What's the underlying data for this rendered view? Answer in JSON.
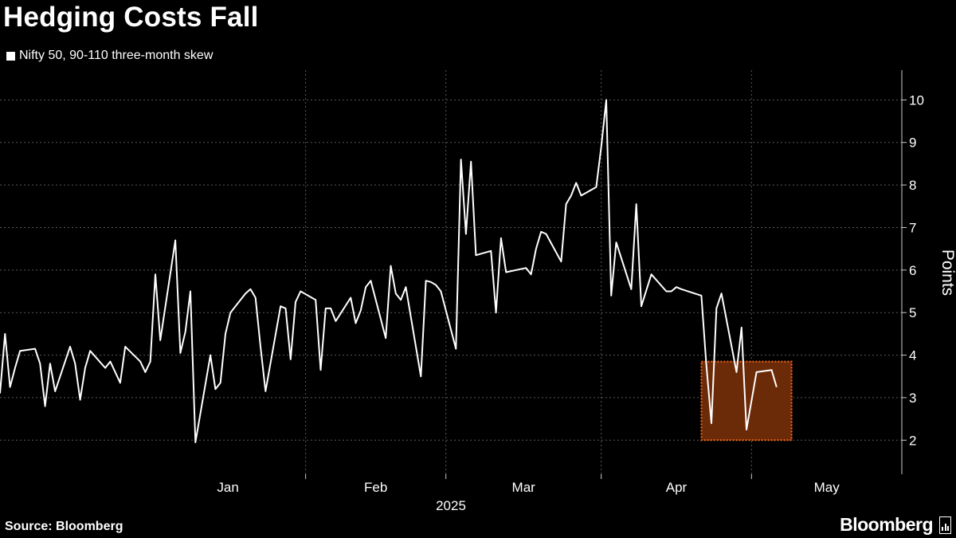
{
  "title": "Hedging Costs Fall",
  "legend": {
    "label": "Nifty 50, 90-110 three-month skew",
    "color": "#ffffff"
  },
  "source": "Source: Bloomberg",
  "brand": "Bloomberg",
  "colors": {
    "background": "#000000",
    "line": "#ffffff",
    "grid": "#5a5a5a",
    "highlight_fill": "#6b2a08",
    "highlight_border": "#ff6a1a"
  },
  "chart_data": {
    "type": "line",
    "title": "Hedging Costs Fall",
    "ylabel": "Points",
    "xlabel": "2025",
    "ylim": [
      1.2,
      10.7
    ],
    "y_ticks": [
      2,
      3,
      4,
      5,
      6,
      7,
      8,
      9,
      10
    ],
    "x_ticks": [
      "Jan",
      "Feb",
      "Mar",
      "Apr",
      "May"
    ],
    "x_tick_dates": [
      "2025-01-01",
      "2025-02-01",
      "2025-03-01",
      "2025-04-01",
      "2025-05-01"
    ],
    "x_range": [
      "2024-12-02",
      "2025-05-31"
    ],
    "year_label": "2025",
    "grid": true,
    "y_axis_position": "right",
    "series": [
      {
        "name": "Nifty 50, 90-110 three-month skew",
        "color": "#ffffff",
        "points": [
          [
            "2024-12-02",
            3.1
          ],
          [
            "2024-12-03",
            4.5
          ],
          [
            "2024-12-04",
            3.25
          ],
          [
            "2024-12-05",
            3.7
          ],
          [
            "2024-12-06",
            4.1
          ],
          [
            "2024-12-09",
            4.15
          ],
          [
            "2024-12-10",
            3.8
          ],
          [
            "2024-12-11",
            2.8
          ],
          [
            "2024-12-12",
            3.8
          ],
          [
            "2024-12-13",
            3.15
          ],
          [
            "2024-12-16",
            4.2
          ],
          [
            "2024-12-17",
            3.8
          ],
          [
            "2024-12-18",
            2.95
          ],
          [
            "2024-12-19",
            3.7
          ],
          [
            "2024-12-20",
            4.1
          ],
          [
            "2024-12-23",
            3.7
          ],
          [
            "2024-12-24",
            3.85
          ],
          [
            "2024-12-26",
            3.35
          ],
          [
            "2024-12-27",
            4.2
          ],
          [
            "2024-12-30",
            3.85
          ],
          [
            "2024-12-31",
            3.6
          ],
          [
            "2025-01-01",
            3.85
          ],
          [
            "2025-01-02",
            5.9
          ],
          [
            "2025-01-03",
            4.35
          ],
          [
            "2025-01-06",
            6.7
          ],
          [
            "2025-01-07",
            4.05
          ],
          [
            "2025-01-08",
            4.55
          ],
          [
            "2025-01-09",
            5.5
          ],
          [
            "2025-01-10",
            1.95
          ],
          [
            "2025-01-13",
            4.0
          ],
          [
            "2025-01-14",
            3.2
          ],
          [
            "2025-01-15",
            3.35
          ],
          [
            "2025-01-16",
            4.5
          ],
          [
            "2025-01-17",
            5.0
          ],
          [
            "2025-01-20",
            5.45
          ],
          [
            "2025-01-21",
            5.55
          ],
          [
            "2025-01-22",
            5.35
          ],
          [
            "2025-01-23",
            4.2
          ],
          [
            "2025-01-24",
            3.15
          ],
          [
            "2025-01-27",
            5.15
          ],
          [
            "2025-01-28",
            5.1
          ],
          [
            "2025-01-29",
            3.9
          ],
          [
            "2025-01-30",
            5.25
          ],
          [
            "2025-01-31",
            5.5
          ],
          [
            "2025-02-03",
            5.3
          ],
          [
            "2025-02-04",
            3.65
          ],
          [
            "2025-02-05",
            5.1
          ],
          [
            "2025-02-06",
            5.1
          ],
          [
            "2025-02-07",
            4.8
          ],
          [
            "2025-02-10",
            5.35
          ],
          [
            "2025-02-11",
            4.75
          ],
          [
            "2025-02-12",
            5.05
          ],
          [
            "2025-02-13",
            5.6
          ],
          [
            "2025-02-14",
            5.75
          ],
          [
            "2025-02-17",
            4.4
          ],
          [
            "2025-02-18",
            6.1
          ],
          [
            "2025-02-19",
            5.45
          ],
          [
            "2025-02-20",
            5.3
          ],
          [
            "2025-02-21",
            5.6
          ],
          [
            "2025-02-24",
            3.5
          ],
          [
            "2025-02-25",
            5.75
          ],
          [
            "2025-02-26",
            5.72
          ],
          [
            "2025-02-27",
            5.65
          ],
          [
            "2025-02-28",
            5.5
          ],
          [
            "2025-03-03",
            4.15
          ],
          [
            "2025-03-04",
            8.6
          ],
          [
            "2025-03-05",
            6.85
          ],
          [
            "2025-03-06",
            8.55
          ],
          [
            "2025-03-07",
            6.35
          ],
          [
            "2025-03-10",
            6.45
          ],
          [
            "2025-03-11",
            5.0
          ],
          [
            "2025-03-12",
            6.75
          ],
          [
            "2025-03-13",
            5.95
          ],
          [
            "2025-03-17",
            6.05
          ],
          [
            "2025-03-18",
            5.9
          ],
          [
            "2025-03-19",
            6.5
          ],
          [
            "2025-03-20",
            6.9
          ],
          [
            "2025-03-21",
            6.85
          ],
          [
            "2025-03-24",
            6.2
          ],
          [
            "2025-03-25",
            7.55
          ],
          [
            "2025-03-26",
            7.75
          ],
          [
            "2025-03-27",
            8.05
          ],
          [
            "2025-03-28",
            7.75
          ],
          [
            "2025-03-31",
            7.95
          ],
          [
            "2025-04-01",
            8.9
          ],
          [
            "2025-04-02",
            10.0
          ],
          [
            "2025-04-03",
            5.4
          ],
          [
            "2025-04-04",
            6.65
          ],
          [
            "2025-04-07",
            5.55
          ],
          [
            "2025-04-08",
            7.55
          ],
          [
            "2025-04-09",
            5.15
          ],
          [
            "2025-04-11",
            5.9
          ],
          [
            "2025-04-14",
            5.5
          ],
          [
            "2025-04-15",
            5.5
          ],
          [
            "2025-04-16",
            5.6
          ],
          [
            "2025-04-17",
            5.55
          ],
          [
            "2025-04-21",
            5.4
          ],
          [
            "2025-04-22",
            3.75
          ],
          [
            "2025-04-23",
            2.4
          ],
          [
            "2025-04-24",
            5.1
          ],
          [
            "2025-04-25",
            5.45
          ],
          [
            "2025-04-28",
            3.6
          ],
          [
            "2025-04-29",
            4.65
          ],
          [
            "2025-04-30",
            2.25
          ],
          [
            "2025-05-02",
            3.6
          ],
          [
            "2025-05-05",
            3.65
          ],
          [
            "2025-05-06",
            3.25
          ]
        ]
      }
    ],
    "highlight": {
      "x_start": "2025-04-21",
      "x_end": "2025-05-09",
      "y_start": 2.0,
      "y_end": 3.85
    }
  }
}
